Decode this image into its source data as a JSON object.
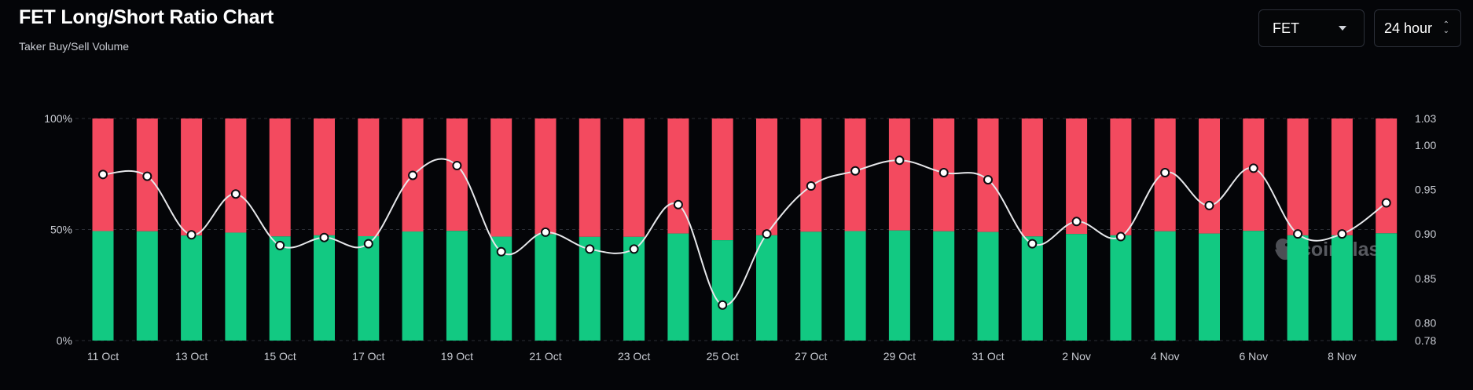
{
  "header": {
    "title": "FET Long/Short Ratio Chart",
    "subtitle": "Taker Buy/Sell Volume"
  },
  "controls": {
    "symbol": "FET",
    "range": "24 hour"
  },
  "watermark": "coinglass",
  "colors": {
    "background": "#040508",
    "long": "#12c982",
    "short": "#f34a5f",
    "ratio_line": "#ffffff",
    "grid": "#2a2d35"
  },
  "chart_data": {
    "type": "bar",
    "stacked": true,
    "categories": [
      "11 Oct",
      "12 Oct",
      "13 Oct",
      "14 Oct",
      "15 Oct",
      "16 Oct",
      "17 Oct",
      "18 Oct",
      "19 Oct",
      "20 Oct",
      "21 Oct",
      "22 Oct",
      "23 Oct",
      "24 Oct",
      "25 Oct",
      "26 Oct",
      "27 Oct",
      "28 Oct",
      "29 Oct",
      "30 Oct",
      "31 Oct",
      "1 Nov",
      "2 Nov",
      "3 Nov",
      "4 Nov",
      "5 Nov",
      "6 Nov",
      "7 Nov",
      "8 Nov",
      "9 Nov"
    ],
    "x_tick_labels": [
      "11 Oct",
      "13 Oct",
      "15 Oct",
      "17 Oct",
      "19 Oct",
      "21 Oct",
      "23 Oct",
      "25 Oct",
      "27 Oct",
      "29 Oct",
      "31 Oct",
      "2 Nov",
      "4 Nov",
      "6 Nov",
      "8 Nov"
    ],
    "series": [
      {
        "values": [
          49.3,
          49.2,
          47.3,
          48.6,
          46.9,
          47.4,
          47.0,
          49.1,
          49.4,
          46.8,
          47.9,
          46.7,
          46.7,
          48.2,
          45.2,
          47.4,
          49.0,
          49.3,
          49.6,
          49.2,
          48.9,
          46.9,
          48.0,
          47.4,
          49.2,
          48.2,
          49.4,
          47.4,
          47.4,
          48.3
        ]
      },
      {
        "values": [
          50.7,
          50.8,
          52.7,
          51.4,
          53.1,
          52.6,
          53.0,
          50.9,
          50.6,
          53.2,
          52.1,
          53.3,
          53.3,
          51.8,
          54.8,
          52.6,
          51.0,
          50.7,
          50.4,
          50.8,
          51.1,
          53.1,
          52.0,
          52.6,
          50.8,
          51.8,
          50.6,
          52.6,
          52.6,
          51.7
        ]
      },
      {
        "type": "line",
        "axis": "right",
        "values": [
          0.967,
          0.965,
          0.899,
          0.945,
          0.887,
          0.896,
          0.889,
          0.966,
          0.977,
          0.88,
          0.902,
          0.883,
          0.883,
          0.933,
          0.82,
          0.9,
          0.954,
          0.971,
          0.983,
          0.969,
          0.961,
          0.889,
          0.914,
          0.897,
          0.969,
          0.932,
          0.974,
          0.9,
          0.9,
          0.935
        ]
      }
    ],
    "y_left": {
      "ticks": [
        "0%",
        "50%",
        "100%"
      ],
      "range": [
        0,
        100
      ]
    },
    "y_right": {
      "ticks": [
        "0.78",
        "0.80",
        "0.85",
        "0.90",
        "0.95",
        "1.00",
        "1.03"
      ],
      "range": [
        0.78,
        1.03
      ]
    },
    "grid": true
  }
}
